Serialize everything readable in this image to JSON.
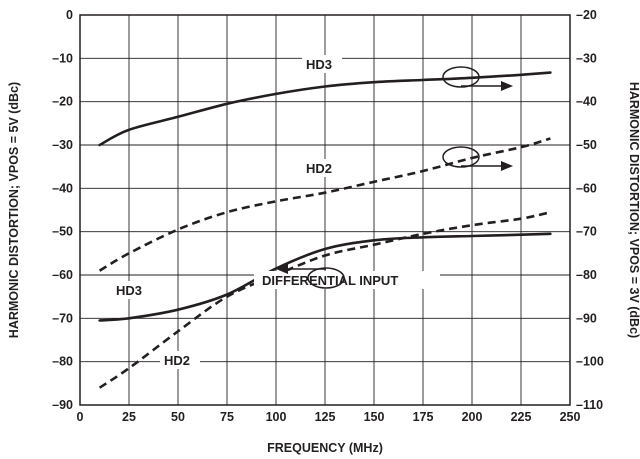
{
  "chart_data": {
    "type": "line",
    "xlabel": "FREQUENCY (MHz)",
    "ylabel_left": "HARMONIC DISTORTION; VPOS = 5V (dBc)",
    "ylabel_right": "HARMONIC DISTORTION; VPOS = 3V (dBc)",
    "xlim": [
      0,
      250
    ],
    "ylim_left": [
      -90,
      0
    ],
    "ylim_right": [
      -110,
      -20
    ],
    "x_ticks": [
      "0",
      "25",
      "50",
      "75",
      "100",
      "125",
      "150",
      "175",
      "200",
      "225",
      "250"
    ],
    "y_left_ticks": [
      "0",
      "–10",
      "–20",
      "–30",
      "–40",
      "–50",
      "–60",
      "–70",
      "–80",
      "–90"
    ],
    "y_right_ticks": [
      "–20",
      "–30",
      "–40",
      "–50",
      "–60",
      "–70",
      "–80",
      "–90",
      "–100",
      "–110"
    ],
    "grid": true,
    "series": [
      {
        "name": "HD3",
        "axis": "right",
        "style": "solid",
        "x": [
          10,
          25,
          50,
          75,
          100,
          125,
          150,
          175,
          200,
          225,
          240
        ],
        "y": [
          -50,
          -46.5,
          -43.5,
          -40.5,
          -38.2,
          -36.5,
          -35.5,
          -35,
          -34.5,
          -33.8,
          -33.3
        ]
      },
      {
        "name": "HD2",
        "axis": "right",
        "style": "dashed",
        "x": [
          10,
          25,
          50,
          75,
          100,
          125,
          150,
          175,
          200,
          225,
          240
        ],
        "y": [
          -79,
          -75,
          -69.5,
          -65.5,
          -63,
          -61,
          -58.5,
          -56,
          -53,
          -50.5,
          -48.5
        ]
      },
      {
        "name": "HD3",
        "axis": "left",
        "style": "solid",
        "x": [
          10,
          25,
          50,
          75,
          100,
          125,
          150,
          175,
          200,
          225,
          240
        ],
        "y": [
          -70.5,
          -70,
          -68,
          -64.5,
          -58.5,
          -54,
          -52,
          -51.3,
          -51,
          -50.7,
          -50.5
        ]
      },
      {
        "name": "HD2",
        "axis": "left",
        "style": "dashed",
        "x": [
          10,
          25,
          50,
          75,
          100,
          125,
          150,
          175,
          200,
          225,
          240
        ],
        "y": [
          -86,
          -81.5,
          -73,
          -65,
          -60,
          -55.5,
          -53,
          -50.5,
          -48.5,
          -47,
          -45.5
        ]
      }
    ],
    "annotations": {
      "hd3_top": "HD3",
      "hd2_top": "HD2",
      "hd3_bottom": "HD3",
      "hd2_bottom": "HD2",
      "input_note": "DIFFERENTIAL INPUT"
    }
  }
}
